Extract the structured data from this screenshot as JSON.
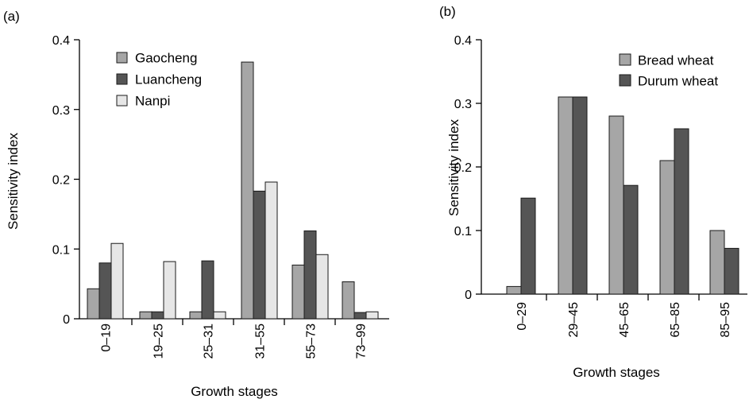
{
  "chart_data": [
    {
      "type": "bar",
      "panel_label": "(a)",
      "categories": [
        "0–19",
        "19–25",
        "25–31",
        "31–55",
        "55–73",
        "73–99"
      ],
      "series": [
        {
          "name": "Gaocheng",
          "color": "#a6a6a6",
          "values": [
            0.043,
            0.01,
            0.01,
            0.368,
            0.077,
            0.053
          ]
        },
        {
          "name": "Luancheng",
          "color": "#555555",
          "values": [
            0.08,
            0.01,
            0.083,
            0.183,
            0.126,
            0.009
          ]
        },
        {
          "name": "Nanpi",
          "color": "#e6e6e6",
          "values": [
            0.108,
            0.082,
            0.01,
            0.196,
            0.092,
            0.01
          ]
        }
      ],
      "xlabel": "Growth stages",
      "ylabel": "Sensitivity index",
      "ylim": [
        0,
        0.4
      ],
      "yticks": [
        "0",
        "0.1",
        "0.2",
        "0.3",
        "0.4"
      ],
      "legend_position": "top-left",
      "grid": false
    },
    {
      "type": "bar",
      "panel_label": "(b)",
      "categories": [
        "0–29",
        "29–45",
        "45–65",
        "65–85",
        "85–95"
      ],
      "series": [
        {
          "name": "Bread wheat",
          "color": "#a6a6a6",
          "values": [
            0.012,
            0.31,
            0.28,
            0.21,
            0.1
          ]
        },
        {
          "name": "Durum wheat",
          "color": "#555555",
          "values": [
            0.151,
            0.31,
            0.171,
            0.26,
            0.072
          ]
        }
      ],
      "xlabel": "Growth stages",
      "ylabel": "Sensitivity index",
      "ylim": [
        0,
        0.4
      ],
      "yticks": [
        "0",
        "0.1",
        "0.2",
        "0.3",
        "0.4"
      ],
      "legend_position": "top-right",
      "grid": false
    }
  ]
}
